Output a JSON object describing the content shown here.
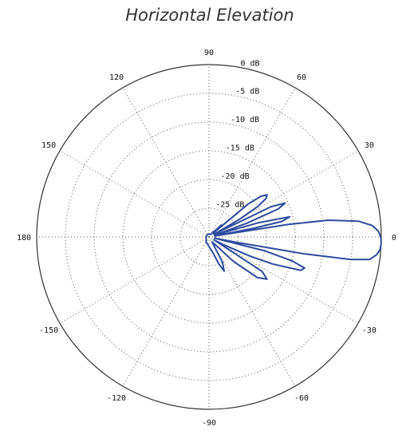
{
  "chart_data": {
    "type": "polar-line",
    "title": "Horizontal Elevation",
    "angle_ticks": [
      "90",
      "60",
      "30",
      "0",
      "-30",
      "-60",
      "-90",
      "-120",
      "-150",
      "180",
      "150",
      "120"
    ],
    "angle_tick_values": [
      90,
      60,
      30,
      0,
      -30,
      -60,
      -90,
      -120,
      -150,
      180,
      150,
      120
    ],
    "radial_labels": [
      "0 dB",
      "-5 dB",
      "-10 dB",
      "-15 dB",
      "-20 dB",
      "-25 dB"
    ],
    "radial_values": [
      0,
      -5,
      -10,
      -15,
      -20,
      -25
    ],
    "rlim": [
      -30,
      0
    ],
    "grid": true,
    "series": [
      {
        "color": "#2e4a9e",
        "angle_deg": [
          -180,
          -120,
          -75,
          -70,
          -66,
          -62,
          -58,
          -50,
          -45,
          -40,
          -36,
          -33,
          -31,
          -28,
          -25,
          -23,
          -20,
          -18,
          -16,
          -14,
          -12,
          -11,
          -10,
          -9,
          -8,
          -6,
          -4,
          -2,
          0,
          2,
          4,
          6,
          8,
          9,
          10,
          11,
          12,
          14,
          16,
          18,
          20,
          22,
          24,
          26,
          28,
          30,
          32,
          34,
          36,
          38,
          40,
          42,
          44,
          46,
          50,
          60,
          90,
          120,
          180
        ],
        "gain_db": [
          -29.5,
          -29,
          -27,
          -25,
          -23.5,
          -25,
          -29,
          -28,
          -24,
          -19,
          -17.5,
          -19,
          -29,
          -27,
          -22,
          -18,
          -13,
          -12.5,
          -15,
          -20,
          -29,
          -25,
          -13,
          -5,
          -1.8,
          -0.6,
          -0.1,
          0,
          -0.1,
          -0.5,
          -1.5,
          -3.8,
          -9,
          -16,
          -29,
          -22,
          -17,
          -15.5,
          -21,
          -29,
          -23,
          -17,
          -15.5,
          -18,
          -29,
          -24,
          -20,
          -18,
          -17.5,
          -18.5,
          -21,
          -29,
          -27,
          -28.5,
          -29,
          -29.5,
          -29.5,
          -29.5,
          -29.5
        ]
      }
    ]
  }
}
